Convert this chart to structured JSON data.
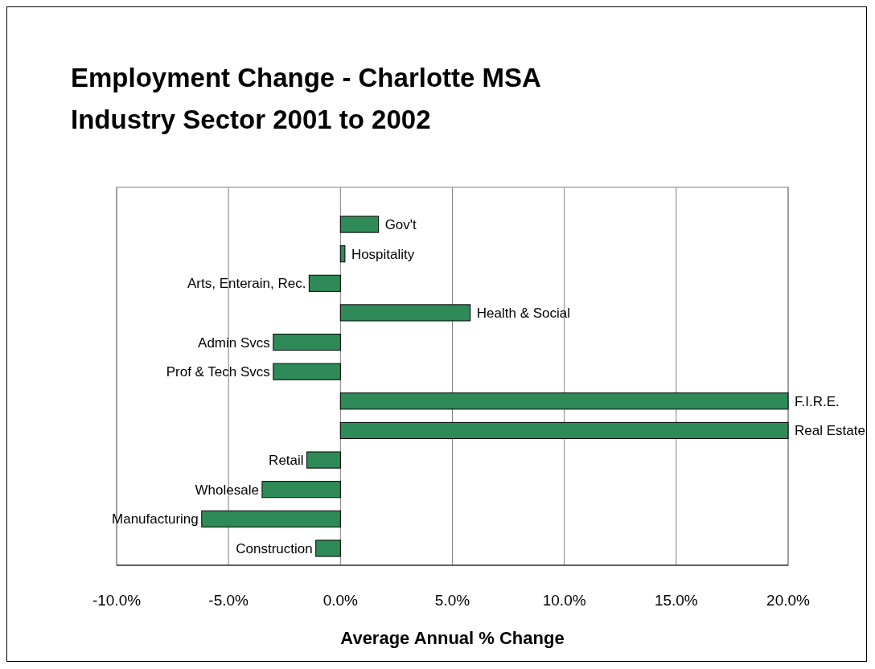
{
  "chart_data": {
    "type": "bar",
    "title": "Employment Change - Charlotte MSA\nIndustry Sector 2001 to 2002",
    "xlabel": "Average Annual % Change",
    "orientation": "horizontal",
    "categories": [
      "Gov't",
      "Hospitality",
      "Arts, Enterain, Rec.",
      "Health & Social",
      "Admin Svcs",
      "Prof & Tech Svcs",
      "F.I.R.E.",
      "Real Estate",
      "Retail",
      "Wholesale",
      "Manufacturing",
      "Construction"
    ],
    "values": [
      1.7,
      0.2,
      -1.4,
      5.8,
      -3.0,
      -3.0,
      20.0,
      20.0,
      -1.5,
      -3.5,
      -6.2,
      -1.1
    ],
    "color": "#2e8b57",
    "xlim": [
      -10,
      20
    ],
    "xticks": [
      {
        "value": -10,
        "label": "-10.0%"
      },
      {
        "value": -5,
        "label": "-5.0%"
      },
      {
        "value": 0,
        "label": "0.0%"
      },
      {
        "value": 5,
        "label": "5.0%"
      },
      {
        "value": 10,
        "label": "10.0%"
      },
      {
        "value": 15,
        "label": "15.0%"
      },
      {
        "value": 20,
        "label": "20.0%"
      }
    ],
    "grid": "x"
  }
}
